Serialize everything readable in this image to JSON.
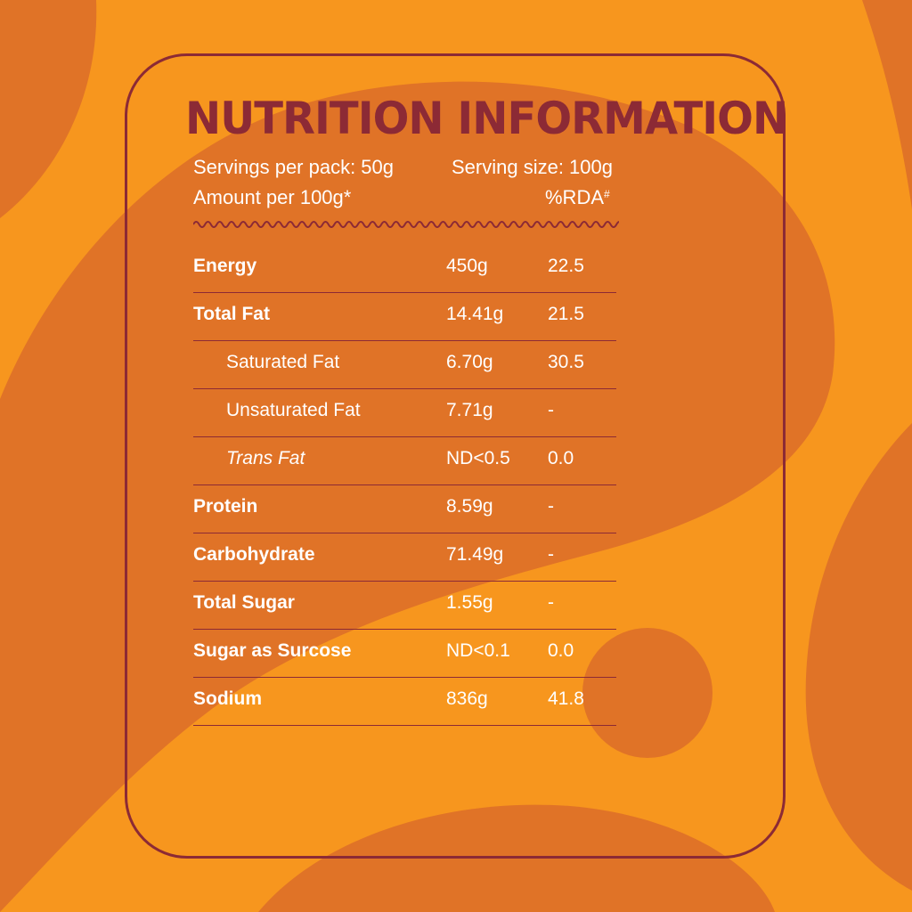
{
  "colors": {
    "background": "#F7961E",
    "blob": "#E07327",
    "accent": "#8C2A35",
    "text": "#FFFFFF"
  },
  "title": "NUTRITION INFORMATION",
  "servings_per_pack": "Servings per pack: 50g",
  "serving_size": "Serving size:  100g",
  "amount_per": "Amount per 100g*",
  "rda_label": "%RDA",
  "rda_mark": "#",
  "rows": [
    {
      "name": "Energy",
      "amount": "450g",
      "rda": "22.5",
      "style": "bold"
    },
    {
      "name": "Total Fat",
      "amount": "14.41g",
      "rda": "21.5",
      "style": "bold"
    },
    {
      "name": "Saturated Fat",
      "amount": "6.70g",
      "rda": "30.5",
      "style": "indent"
    },
    {
      "name": "Unsaturated Fat",
      "amount": "7.71g",
      "rda": "-",
      "style": "indent"
    },
    {
      "name": "Trans Fat",
      "amount": "ND<0.5",
      "rda": "0.0",
      "style": "indent-italic"
    },
    {
      "name": "Protein",
      "amount": "8.59g",
      "rda": "-",
      "style": "bold"
    },
    {
      "name": "Carbohydrate",
      "amount": "71.49g",
      "rda": "-",
      "style": "bold"
    },
    {
      "name": "Total Sugar",
      "amount": "1.55g",
      "rda": "-",
      "style": "bold"
    },
    {
      "name": "Sugar as Surcose",
      "amount": "ND<0.1",
      "rda": "0.0",
      "style": "bold"
    },
    {
      "name": "Sodium",
      "amount": "836g",
      "rda": "41.8",
      "style": "bold"
    }
  ]
}
